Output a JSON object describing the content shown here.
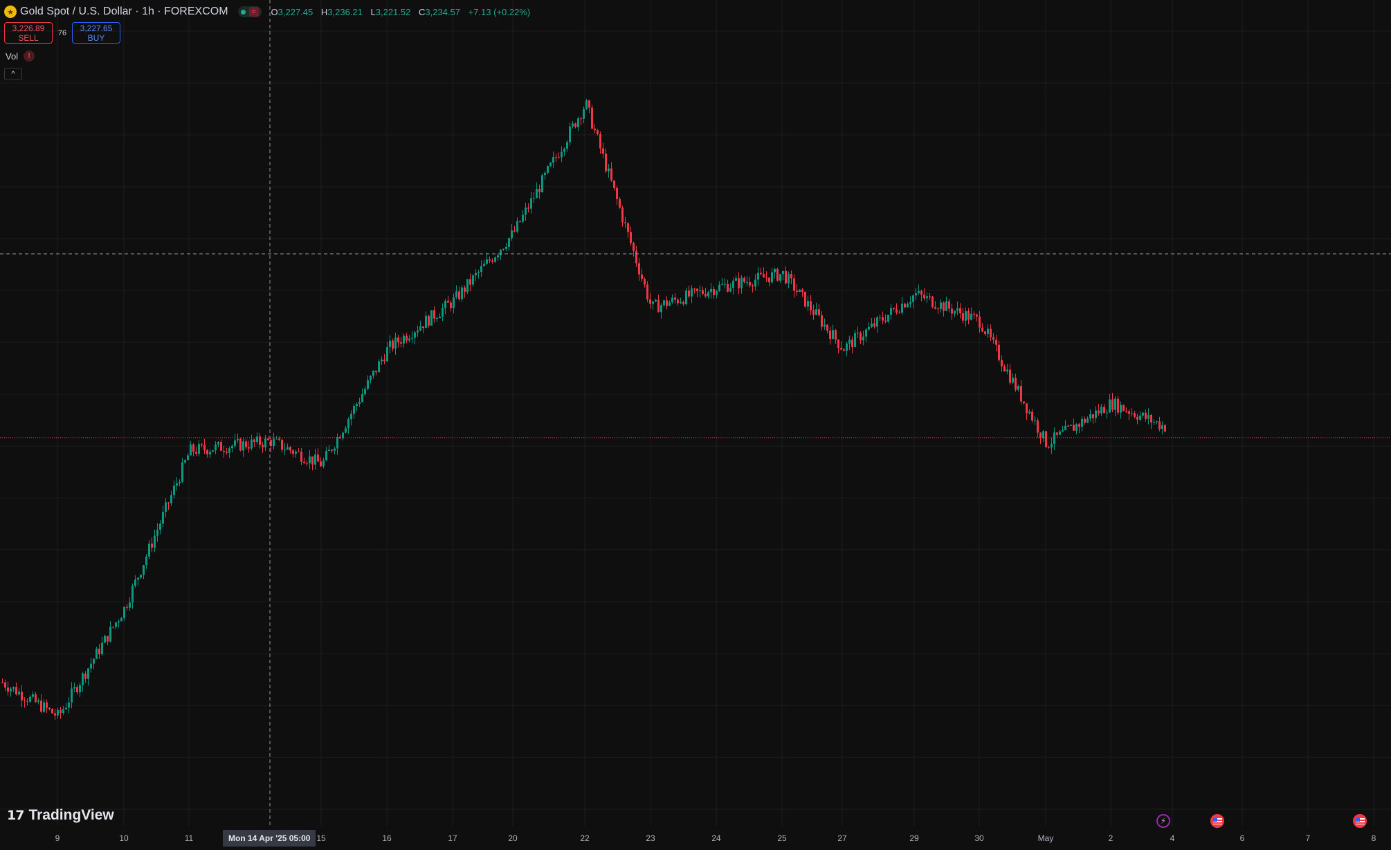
{
  "legend": {
    "symbol_icon": "gold-coin-icon",
    "title": "Gold Spot / U.S. Dollar · 1h · FOREXCOM",
    "market_status_icon": "market-open-dot-icon",
    "ohlc": {
      "o_label": "O",
      "o_value": "3,227.45",
      "h_label": "H",
      "h_value": "3,236.21",
      "l_label": "L",
      "l_value": "3,221.52",
      "c_label": "C",
      "c_value": "3,234.57",
      "change": "+7.13 (+0.22%)"
    }
  },
  "trade": {
    "sell_price": "3,226.89",
    "sell_label": "SELL",
    "spread": "76",
    "buy_price": "3,227.65",
    "buy_label": "BUY"
  },
  "volume": {
    "label": "Vol",
    "warning_icon": "warning-icon",
    "warning_glyph": "!"
  },
  "collapse": {
    "icon": "chevron-up-icon",
    "glyph": "^"
  },
  "branding": {
    "logo_mark": "17",
    "logo_text": "TradingView"
  },
  "events": {
    "lightning_icon": "lightning-icon",
    "lightning_glyph": "⚡",
    "flag_icon": "us-flag-icon"
  },
  "crosshair": {
    "time_label": "Mon 14 Apr '25   05:00"
  },
  "time_axis": {
    "labels": [
      "9",
      "10",
      "11",
      "15",
      "16",
      "17",
      "20",
      "22",
      "23",
      "24",
      "25",
      "27",
      "29",
      "30",
      "May",
      "2",
      "4",
      "6",
      "7",
      "8"
    ]
  },
  "colors": {
    "background": "#0f0f0f",
    "grid": "#1e1e1e",
    "up": "#089981",
    "down": "#f23645",
    "crosshair": "#9598a1",
    "price_line": "#f23645"
  },
  "chart_data": {
    "type": "candlestick",
    "symbol": "Gold Spot / U.S. Dollar",
    "interval": "1h",
    "source": "FOREXCOM",
    "x_unit": "date",
    "x_labels": [
      "9",
      "10",
      "11",
      "14",
      "15",
      "16",
      "17",
      "20",
      "22",
      "23",
      "24",
      "25",
      "27",
      "29",
      "30",
      "May",
      "2",
      "4"
    ],
    "close_path": [
      {
        "x": "9",
        "y": 3030
      },
      {
        "x": "10",
        "y": 3110
      },
      {
        "x": "11",
        "y": 3225
      },
      {
        "x": "14",
        "y": 3232
      },
      {
        "x": "15",
        "y": 3215
      },
      {
        "x": "16",
        "y": 3300
      },
      {
        "x": "17",
        "y": 3335
      },
      {
        "x": "20",
        "y": 3385
      },
      {
        "x": "22",
        "y": 3480
      },
      {
        "x": "23",
        "y": 3330
      },
      {
        "x": "24",
        "y": 3345
      },
      {
        "x": "25",
        "y": 3355
      },
      {
        "x": "27",
        "y": 3300
      },
      {
        "x": "29",
        "y": 3340
      },
      {
        "x": "30",
        "y": 3320
      },
      {
        "x": "May",
        "y": 3230
      },
      {
        "x": "2",
        "y": 3260
      },
      {
        "x": "4",
        "y": 3240
      }
    ],
    "last_price": 3234.57
  }
}
